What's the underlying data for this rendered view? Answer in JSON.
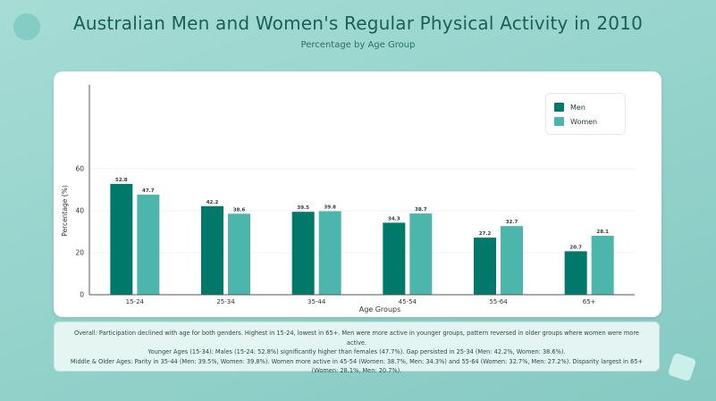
{
  "title": "Australian Men and Women's Regular Physical Activity in 2010",
  "subtitle": "Percentage by Age Group",
  "chart_data": {
    "type": "bar",
    "categories": [
      "15-24",
      "25-34",
      "35-44",
      "45-54",
      "55-64",
      "65+"
    ],
    "series": [
      {
        "name": "Men",
        "color": "#00796b",
        "values": [
          52.8,
          42.2,
          39.5,
          34.3,
          27.2,
          20.7
        ]
      },
      {
        "name": "Women",
        "color": "#4db6ac",
        "values": [
          47.7,
          38.6,
          39.8,
          38.7,
          32.7,
          28.1
        ]
      }
    ],
    "xlabel": "Age Groups",
    "ylabel": "Percentage (%)",
    "ylim": [
      0,
      100
    ],
    "yticks": [
      0,
      20,
      40,
      60
    ],
    "grid": true,
    "legend_position": "top-right"
  },
  "summary": {
    "line1": "Overall: Participation declined with age for both genders. Highest in 15-24, lowest in 65+. Men were more active in younger groups, pattern reversed in older groups where women were more active.",
    "line2": "Younger Ages (15-34): Males (15-24: 52.8%) significantly higher than females (47.7%). Gap persisted in 25-34 (Men: 42.2%, Women: 38.6%).",
    "line3": "Middle & Older Ages: Parity in 35-44 (Men: 39.5%, Women: 39.8%). Women more active in 45-54 (Women: 38.7%, Men: 34.3%) and 55-64 (Women: 32.7%, Men: 27.2%). Disparity largest in 65+ (Women: 28.1%, Men: 20.7%)."
  }
}
